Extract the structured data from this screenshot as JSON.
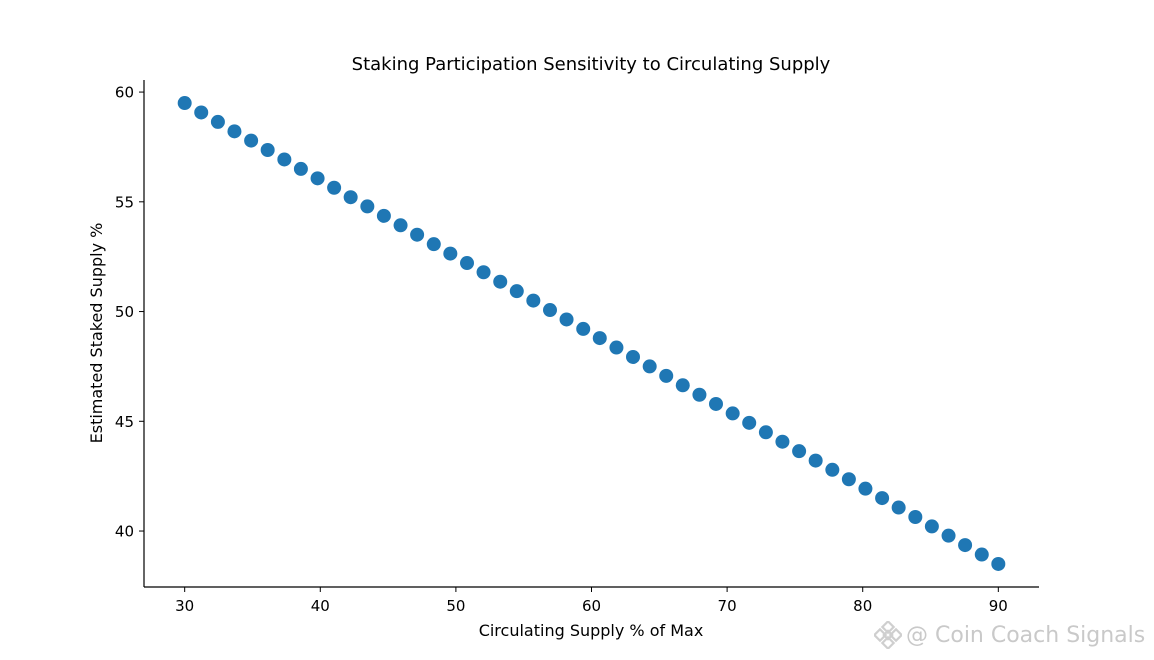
{
  "chart_data": {
    "type": "scatter",
    "title": "Staking Participation Sensitivity to Circulating Supply",
    "xlabel": "Circulating Supply % of Max",
    "ylabel": "Estimated Staked Supply %",
    "xlim": [
      27.0,
      93.0
    ],
    "ylim": [
      37.45,
      60.55
    ],
    "xticks": [
      30,
      40,
      50,
      60,
      70,
      80,
      90
    ],
    "yticks": [
      40,
      45,
      50,
      55,
      60
    ],
    "grid": false,
    "legend": null,
    "series": [
      {
        "name": "Estimated Staked Supply %",
        "color": "#1f77b4",
        "x": [
          30.0,
          31.22,
          32.45,
          33.67,
          34.9,
          36.12,
          37.35,
          38.57,
          39.8,
          41.02,
          42.24,
          43.47,
          44.69,
          45.92,
          47.14,
          48.37,
          49.59,
          50.82,
          52.04,
          53.27,
          54.49,
          55.71,
          56.94,
          58.16,
          59.39,
          60.61,
          61.84,
          63.06,
          64.29,
          65.51,
          66.73,
          67.96,
          69.18,
          70.41,
          71.63,
          72.86,
          74.08,
          75.31,
          76.53,
          77.76,
          78.98,
          80.2,
          81.43,
          82.65,
          83.88,
          85.1,
          86.33,
          87.55,
          88.78,
          90.0
        ],
        "y": [
          59.5,
          59.07,
          58.64,
          58.21,
          57.79,
          57.36,
          56.93,
          56.5,
          56.07,
          55.64,
          55.21,
          54.79,
          54.36,
          53.93,
          53.5,
          53.07,
          52.64,
          52.21,
          51.79,
          51.36,
          50.93,
          50.5,
          50.07,
          49.64,
          49.21,
          48.79,
          48.36,
          47.93,
          47.5,
          47.07,
          46.64,
          46.21,
          45.79,
          45.36,
          44.93,
          44.5,
          44.07,
          43.64,
          43.21,
          42.79,
          42.36,
          41.93,
          41.5,
          41.07,
          40.64,
          40.21,
          39.79,
          39.36,
          38.93,
          38.5
        ]
      }
    ]
  },
  "watermark": {
    "logo_icon": "binance-diamond-icon",
    "text": "@ Coin Coach Signals"
  }
}
